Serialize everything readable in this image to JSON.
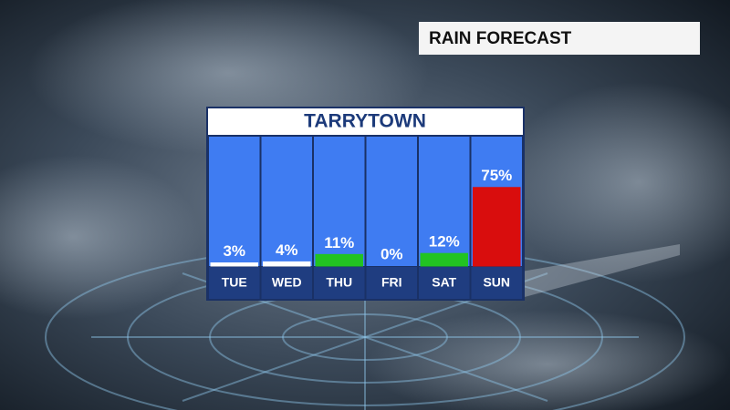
{
  "chart_data": {
    "type": "bar",
    "title": "RAIN FORECAST",
    "subtitle": "TARRYTOWN",
    "categories": [
      "TUE",
      "WED",
      "THU",
      "FRI",
      "SAT",
      "SUN"
    ],
    "values": [
      3,
      4,
      11,
      0,
      12,
      75
    ],
    "value_labels": [
      "3%",
      "4%",
      "11%",
      "0%",
      "12%",
      "75%"
    ],
    "colors": [
      "#ffffff",
      "#ffffff",
      "#22c322",
      "#ffffff",
      "#22c322",
      "#d90d0d"
    ],
    "ylim": [
      0,
      100
    ]
  }
}
